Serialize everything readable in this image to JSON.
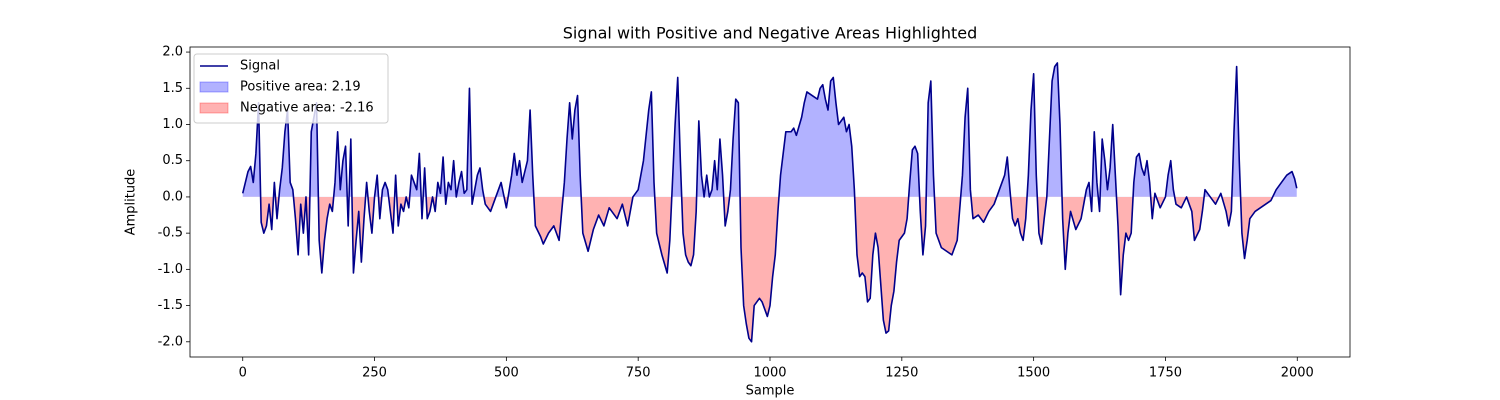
{
  "chart_data": {
    "type": "line",
    "title": "Signal with Positive and Negative Areas Highlighted",
    "xlabel": "Sample",
    "ylabel": "Amplitude",
    "xlim": [
      -100,
      2100
    ],
    "ylim": [
      -2.21,
      2.07
    ],
    "xticks": [
      0,
      250,
      500,
      750,
      1000,
      1250,
      1500,
      1750,
      2000
    ],
    "yticks": [
      {
        "value": -2,
        "label": "-2.0"
      },
      -1.5,
      {
        "value": -1,
        "label": "-1.0"
      },
      -0.5,
      {
        "value": 0,
        "label": "0.0"
      },
      0.5,
      {
        "value": 1,
        "label": "1.0"
      },
      1.5,
      {
        "value": 2,
        "label": "2.0"
      }
    ],
    "legend": "upper left",
    "x": [
      0,
      10,
      15,
      20,
      25,
      30,
      35,
      40,
      45,
      50,
      55,
      60,
      65,
      70,
      75,
      80,
      85,
      90,
      95,
      100,
      105,
      110,
      115,
      120,
      125,
      130,
      135,
      140,
      145,
      150,
      155,
      160,
      165,
      170,
      175,
      180,
      185,
      190,
      195,
      200,
      205,
      210,
      215,
      220,
      225,
      230,
      235,
      240,
      245,
      250,
      255,
      260,
      265,
      270,
      275,
      280,
      285,
      290,
      295,
      300,
      305,
      310,
      315,
      320,
      330,
      335,
      340,
      345,
      350,
      355,
      360,
      365,
      370,
      375,
      380,
      385,
      390,
      395,
      400,
      405,
      410,
      415,
      420,
      425,
      430,
      435,
      440,
      445,
      450,
      455,
      460,
      470,
      480,
      490,
      500,
      510,
      515,
      520,
      525,
      530,
      540,
      545,
      550,
      555,
      565,
      570,
      580,
      590,
      600,
      610,
      615,
      620,
      625,
      630,
      635,
      640,
      645,
      655,
      665,
      675,
      685,
      695,
      700,
      710,
      720,
      730,
      740,
      750,
      760,
      770,
      775,
      780,
      785,
      795,
      805,
      810,
      815,
      820,
      825,
      830,
      835,
      840,
      845,
      850,
      855,
      860,
      865,
      870,
      875,
      880,
      885,
      890,
      895,
      900,
      905,
      910,
      915,
      920,
      925,
      930,
      935,
      940,
      945,
      950,
      955,
      960,
      965,
      970,
      975,
      980,
      985,
      990,
      995,
      1000,
      1005,
      1010,
      1015,
      1020,
      1025,
      1030,
      1040,
      1045,
      1050,
      1060,
      1065,
      1070,
      1080,
      1090,
      1095,
      1100,
      1105,
      1110,
      1115,
      1120,
      1125,
      1130,
      1140,
      1145,
      1150,
      1155,
      1160,
      1165,
      1170,
      1175,
      1180,
      1185,
      1190,
      1195,
      1200,
      1205,
      1210,
      1215,
      1220,
      1225,
      1230,
      1235,
      1240,
      1245,
      1255,
      1260,
      1265,
      1270,
      1275,
      1280,
      1285,
      1290,
      1295,
      1300,
      1305,
      1310,
      1315,
      1325,
      1335,
      1345,
      1355,
      1365,
      1370,
      1375,
      1380,
      1385,
      1395,
      1405,
      1415,
      1425,
      1435,
      1445,
      1450,
      1455,
      1460,
      1465,
      1470,
      1475,
      1480,
      1485,
      1490,
      1495,
      1500,
      1505,
      1510,
      1515,
      1520,
      1525,
      1530,
      1535,
      1540,
      1545,
      1550,
      1555,
      1560,
      1565,
      1570,
      1580,
      1590,
      1595,
      1600,
      1605,
      1610,
      1615,
      1620,
      1625,
      1630,
      1635,
      1640,
      1645,
      1650,
      1655,
      1660,
      1665,
      1670,
      1675,
      1680,
      1685,
      1690,
      1695,
      1700,
      1705,
      1710,
      1715,
      1720,
      1725,
      1730,
      1740,
      1750,
      1755,
      1760,
      1765,
      1770,
      1780,
      1790,
      1800,
      1805,
      1815,
      1820,
      1825,
      1835,
      1845,
      1855,
      1865,
      1870,
      1875,
      1880,
      1885,
      1890,
      1895,
      1900,
      1905,
      1910,
      1920,
      1930,
      1940,
      1950,
      1960,
      1970,
      1980,
      1990,
      1995,
      1999
    ],
    "series": [
      {
        "name": "Signal",
        "color": "#00008b",
        "values": [
          0.05,
          0.35,
          0.42,
          0.2,
          0.6,
          1.3,
          -0.35,
          -0.5,
          -0.4,
          -0.1,
          -0.45,
          0.2,
          -0.3,
          0.1,
          0.4,
          0.9,
          1.2,
          0.2,
          0.1,
          -0.3,
          -0.8,
          -0.1,
          -0.5,
          0.0,
          -0.8,
          0.9,
          1.1,
          1.3,
          -0.6,
          -1.05,
          -0.6,
          -0.3,
          -0.1,
          -0.2,
          0.2,
          0.9,
          0.1,
          0.5,
          0.7,
          -0.4,
          0.8,
          -1.05,
          -0.6,
          -0.2,
          -0.9,
          -0.3,
          0.2,
          -0.2,
          -0.5,
          0.0,
          0.3,
          -0.3,
          0.1,
          0.2,
          0.1,
          -0.2,
          -0.5,
          0.3,
          -0.4,
          -0.1,
          -0.2,
          0.0,
          -0.15,
          0.3,
          0.1,
          0.6,
          -0.3,
          0.4,
          -0.3,
          -0.2,
          0.0,
          -0.2,
          0.2,
          0.05,
          0.55,
          -0.1,
          0.2,
          0.1,
          0.5,
          0.0,
          0.2,
          0.35,
          0.05,
          0.1,
          1.5,
          -0.1,
          0.1,
          0.3,
          0.4,
          0.1,
          -0.1,
          -0.2,
          0.0,
          0.2,
          -0.15,
          0.3,
          0.6,
          0.3,
          0.5,
          0.2,
          0.5,
          1.2,
          0.3,
          -0.4,
          -0.55,
          -0.65,
          -0.5,
          -0.4,
          -0.6,
          0.2,
          0.8,
          1.3,
          0.8,
          1.2,
          1.4,
          0.3,
          -0.5,
          -0.75,
          -0.45,
          -0.25,
          -0.4,
          -0.15,
          -0.2,
          -0.3,
          -0.1,
          -0.4,
          0.0,
          0.1,
          0.5,
          1.2,
          1.45,
          0.2,
          -0.5,
          -0.8,
          -1.05,
          -0.6,
          0.2,
          1.0,
          1.65,
          0.5,
          -0.5,
          -0.8,
          -0.9,
          -0.95,
          -0.8,
          -0.2,
          1.05,
          0.3,
          0.0,
          0.3,
          0.0,
          0.1,
          0.5,
          0.1,
          0.8,
          0.3,
          -0.4,
          -0.2,
          0.1,
          0.8,
          1.35,
          1.3,
          -0.7,
          -1.5,
          -1.75,
          -1.95,
          -2.0,
          -1.5,
          -1.45,
          -1.4,
          -1.45,
          -1.55,
          -1.65,
          -1.5,
          -1.1,
          -0.8,
          -0.2,
          0.3,
          0.6,
          0.9,
          0.9,
          0.95,
          0.85,
          1.1,
          1.3,
          1.45,
          1.4,
          1.35,
          1.5,
          1.55,
          1.35,
          1.2,
          1.6,
          1.65,
          1.3,
          1.0,
          1.1,
          0.9,
          1.0,
          0.7,
          0.1,
          -0.8,
          -1.1,
          -1.05,
          -1.1,
          -1.45,
          -1.4,
          -0.8,
          -0.5,
          -0.7,
          -1.2,
          -1.7,
          -1.88,
          -1.85,
          -1.5,
          -1.3,
          -0.9,
          -0.6,
          -0.5,
          -0.3,
          0.2,
          0.65,
          0.7,
          0.6,
          -0.2,
          -0.8,
          -0.4,
          1.3,
          1.6,
          0.3,
          -0.5,
          -0.7,
          -0.75,
          -0.8,
          -0.6,
          0.3,
          1.1,
          1.5,
          0.1,
          -0.3,
          -0.25,
          -0.35,
          -0.2,
          -0.1,
          0.1,
          0.3,
          0.55,
          0.1,
          -0.3,
          -0.4,
          -0.3,
          -0.5,
          -0.6,
          -0.3,
          0.3,
          1.2,
          1.7,
          0.3,
          -0.5,
          -0.65,
          -0.3,
          0.0,
          0.8,
          1.6,
          1.8,
          1.85,
          1.0,
          -0.3,
          -1.0,
          -0.5,
          -0.2,
          -0.45,
          -0.3,
          -0.1,
          0.1,
          0.2,
          -0.2,
          0.9,
          0.2,
          -0.2,
          0.8,
          0.5,
          0.1,
          0.4,
          1.0,
          0.3,
          -0.4,
          -1.35,
          -0.8,
          -0.5,
          -0.6,
          -0.5,
          0.2,
          0.55,
          0.6,
          0.4,
          0.3,
          0.5,
          0.2,
          -0.3,
          0.05,
          -0.15,
          0.0,
          0.3,
          0.5,
          0.1,
          -0.1,
          -0.15,
          0.0,
          -0.2,
          -0.6,
          -0.45,
          -0.2,
          0.1,
          0.0,
          -0.1,
          0.05,
          -0.2,
          -0.4,
          -0.2,
          0.9,
          1.8,
          0.5,
          -0.5,
          -0.85,
          -0.6,
          -0.3,
          -0.2,
          -0.15,
          -0.1,
          -0.05,
          0.1,
          0.2,
          0.3,
          0.35,
          0.25,
          0.12
        ]
      }
    ],
    "fills": [
      {
        "name": "Positive area: 2.19",
        "color": "#0000ff",
        "alpha": 0.3,
        "where": "above"
      },
      {
        "name": "Negative area: -2.16",
        "color": "#ff0000",
        "alpha": 0.3,
        "where": "below"
      }
    ]
  }
}
